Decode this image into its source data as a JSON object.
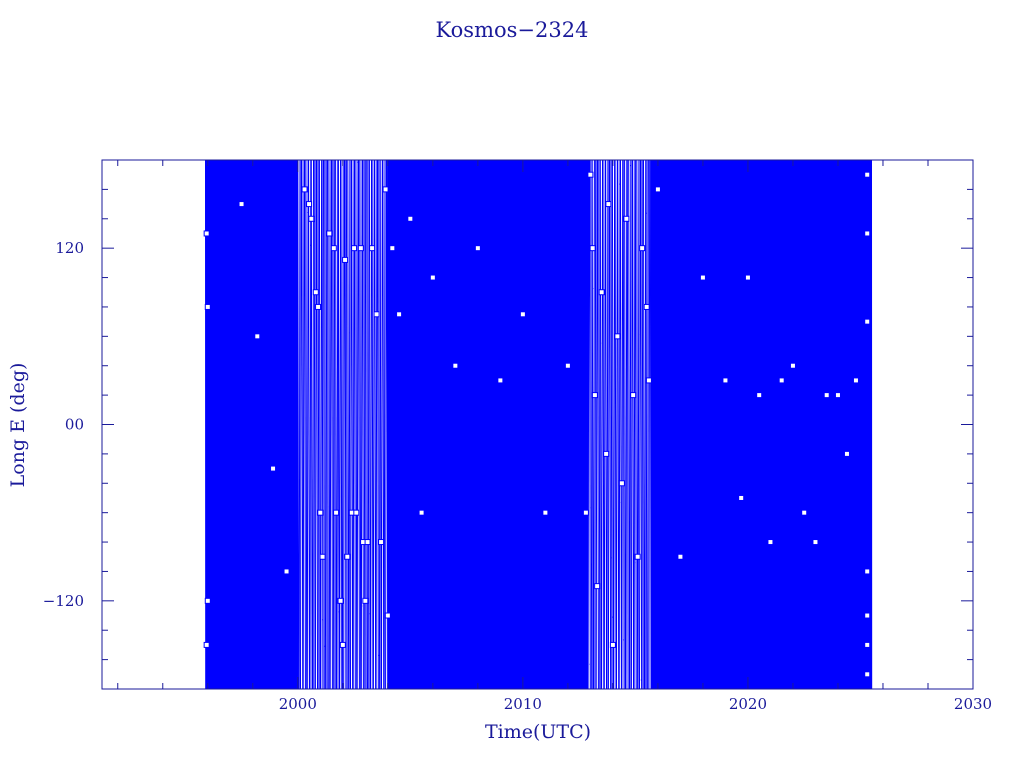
{
  "chart_data": {
    "type": "scatter",
    "title": "Kosmos−2324",
    "xlabel": "Time(UTC)",
    "ylabel": "Long E (deg)",
    "xlim": [
      1991.3,
      2030.0
    ],
    "ylim": [
      -180,
      180
    ],
    "x_ticks": [
      {
        "value": 2000,
        "label": "2000"
      },
      {
        "value": 2010,
        "label": "2010"
      },
      {
        "value": 2020,
        "label": "2020"
      },
      {
        "value": 2030,
        "label": "2030"
      }
    ],
    "y_ticks": [
      {
        "value": 120,
        "label": "120"
      },
      {
        "value": 0,
        "label": "00"
      },
      {
        "value": -120,
        "label": "−120"
      }
    ],
    "marker": "open-square",
    "connected": true,
    "grid": false,
    "colors": {
      "data": "#0000ff",
      "axes": "#1a1a9a"
    },
    "series": [
      {
        "note_segments": "Longitude drifts continuously through -180..180; dense wrap-around traces between segment start and end dates",
        "segments": [
          {
            "x_start": 1995.9,
            "x_end": 2000.0,
            "dense": true
          },
          {
            "x_start": 2000.0,
            "x_end": 2001.8,
            "dense": false
          },
          {
            "x_start": 2001.8,
            "x_end": 2004.0,
            "dense": false
          },
          {
            "x_start": 2004.0,
            "x_end": 2012.9,
            "dense": true
          },
          {
            "x_start": 2012.9,
            "x_end": 2015.7,
            "dense": false
          },
          {
            "x_start": 2015.7,
            "x_end": 2025.5,
            "dense": true
          }
        ],
        "points": [
          [
            1995.95,
            130
          ],
          [
            1995.95,
            -150
          ],
          [
            1996.0,
            80
          ],
          [
            1996.0,
            -120
          ],
          [
            1997.5,
            150
          ],
          [
            1998.2,
            60
          ],
          [
            1998.9,
            -30
          ],
          [
            1999.5,
            -100
          ],
          [
            2000.3,
            160
          ],
          [
            2000.5,
            150
          ],
          [
            2000.6,
            140
          ],
          [
            2000.8,
            90
          ],
          [
            2000.9,
            80
          ],
          [
            2001.0,
            -60
          ],
          [
            2001.1,
            -90
          ],
          [
            2001.4,
            130
          ],
          [
            2001.6,
            120
          ],
          [
            2001.7,
            -60
          ],
          [
            2001.9,
            -120
          ],
          [
            2002.0,
            -150
          ],
          [
            2002.1,
            112
          ],
          [
            2002.2,
            -90
          ],
          [
            2002.4,
            -60
          ],
          [
            2002.5,
            120
          ],
          [
            2002.6,
            -60
          ],
          [
            2002.8,
            120
          ],
          [
            2002.9,
            -80
          ],
          [
            2003.0,
            -120
          ],
          [
            2003.1,
            -80
          ],
          [
            2003.3,
            120
          ],
          [
            2003.5,
            75
          ],
          [
            2003.7,
            -80
          ],
          [
            2003.9,
            160
          ],
          [
            2004.0,
            -130
          ],
          [
            2004.2,
            120
          ],
          [
            2004.5,
            75
          ],
          [
            2005.0,
            140
          ],
          [
            2005.5,
            -60
          ],
          [
            2006.0,
            100
          ],
          [
            2007.0,
            40
          ],
          [
            2008.0,
            120
          ],
          [
            2009.0,
            30
          ],
          [
            2010.0,
            75
          ],
          [
            2011.0,
            -60
          ],
          [
            2012.0,
            40
          ],
          [
            2012.8,
            -60
          ],
          [
            2013.0,
            170
          ],
          [
            2013.1,
            120
          ],
          [
            2013.2,
            20
          ],
          [
            2013.3,
            -110
          ],
          [
            2013.5,
            90
          ],
          [
            2013.7,
            -20
          ],
          [
            2013.8,
            150
          ],
          [
            2014.0,
            -150
          ],
          [
            2014.2,
            60
          ],
          [
            2014.4,
            -40
          ],
          [
            2014.6,
            140
          ],
          [
            2014.9,
            20
          ],
          [
            2015.1,
            -90
          ],
          [
            2015.3,
            120
          ],
          [
            2015.5,
            80
          ],
          [
            2015.6,
            30
          ],
          [
            2016.0,
            160
          ],
          [
            2017.0,
            -90
          ],
          [
            2018.0,
            100
          ],
          [
            2019.0,
            30
          ],
          [
            2019.7,
            -50
          ],
          [
            2020.0,
            100
          ],
          [
            2020.5,
            20
          ],
          [
            2021.0,
            -80
          ],
          [
            2021.5,
            30
          ],
          [
            2022.0,
            40
          ],
          [
            2022.5,
            -60
          ],
          [
            2023.0,
            -80
          ],
          [
            2023.5,
            20
          ],
          [
            2024.0,
            20
          ],
          [
            2024.4,
            -20
          ],
          [
            2024.8,
            30
          ],
          [
            2025.3,
            170
          ],
          [
            2025.3,
            130
          ],
          [
            2025.3,
            70
          ],
          [
            2025.3,
            -100
          ],
          [
            2025.3,
            -130
          ],
          [
            2025.3,
            -150
          ],
          [
            2025.3,
            -170
          ]
        ]
      }
    ]
  }
}
